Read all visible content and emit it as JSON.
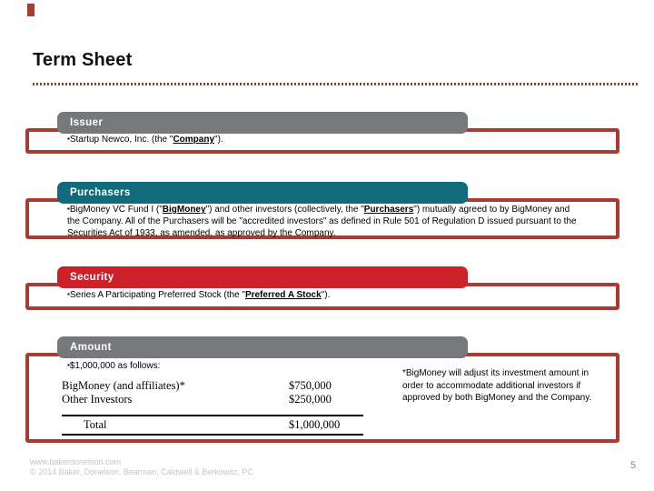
{
  "slide": {
    "title": "Term Sheet",
    "bullet": "▪",
    "page_number": "5",
    "footer": {
      "url": "www.bakerdonelson.com",
      "copyright": "© 2014 Baker, Donelson, Bearman, Caldwell & Berkowitz, PC"
    },
    "colors": {
      "accent_red_border": "#A93B31",
      "header_gray": "#77787B",
      "header_teal": "#0F6B7C",
      "header_red": "#CC2128"
    }
  },
  "sections": {
    "issuer": {
      "label": "Issuer",
      "body": {
        "pre": "Startup Newco, Inc. (the \"",
        "term": "Company",
        "post": "\")."
      }
    },
    "purchasers": {
      "label": "Purchasers",
      "body": {
        "pre": "BigMoney VC Fund I (\"",
        "term1": "BigMoney",
        "mid": "\") and other investors (collectively, the \"",
        "term2": "Purchasers",
        "post": "\") mutually agreed to by BigMoney and the Company.  All of the Purchasers will be \"accredited investors\" as defined in Rule 501 of Regulation D issued pursuant to the Securities Act of 1933, as amended, as approved by the Company."
      }
    },
    "security": {
      "label": "Security",
      "body": {
        "pre": "Series A Participating Preferred Stock (the \"",
        "term": "Preferred A Stock",
        "post": "\")."
      }
    },
    "amount": {
      "label": "Amount",
      "intro": "$1,000,000 as follows:",
      "table": {
        "rows": [
          {
            "label": "BigMoney (and affiliates)*",
            "value": "$750,000"
          },
          {
            "label": "Other Investors",
            "value": "$250,000"
          }
        ],
        "total_label": "Total",
        "total_value": "$1,000,000"
      },
      "note": "*BigMoney will adjust its investment amount in order to accommodate additional investors if approved by both BigMoney and the Company."
    }
  }
}
